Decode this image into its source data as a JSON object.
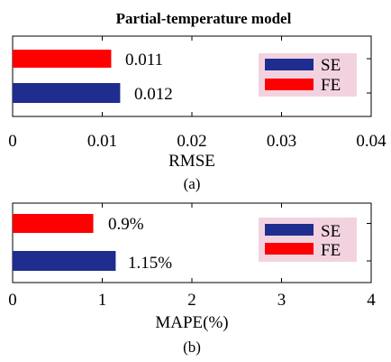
{
  "chart_data": [
    {
      "panel": "(a)",
      "type": "bar",
      "orientation": "horizontal",
      "title": "Partial-temperature model",
      "xlabel": "RMSE",
      "xlim": [
        0,
        0.04
      ],
      "xticks": [
        "0",
        "0.01",
        "0.02",
        "0.03",
        "0.04"
      ],
      "xtick_values": [
        0,
        0.01,
        0.02,
        0.03,
        0.04
      ],
      "series": [
        {
          "name": "SE",
          "color": "#1f2d8f",
          "value": 0.012,
          "label": "0.012"
        },
        {
          "name": "FE",
          "color": "#ff0000",
          "value": 0.011,
          "label": "0.011"
        }
      ],
      "legend": {
        "placement": "right",
        "background": "#f3d2e0"
      },
      "grid": false
    },
    {
      "panel": "(b)",
      "type": "bar",
      "orientation": "horizontal",
      "title": "",
      "xlabel": "MAPE(%)",
      "xlim": [
        0,
        4
      ],
      "xticks": [
        "0",
        "1",
        "2",
        "3",
        "4"
      ],
      "xtick_values": [
        0,
        1,
        2,
        3,
        4
      ],
      "series": [
        {
          "name": "SE",
          "color": "#1f2d8f",
          "value": 1.15,
          "label": "1.15%"
        },
        {
          "name": "FE",
          "color": "#ff0000",
          "value": 0.9,
          "label": "0.9%"
        }
      ],
      "legend": {
        "placement": "right",
        "background": "#f3d2e0"
      },
      "grid": false
    }
  ]
}
